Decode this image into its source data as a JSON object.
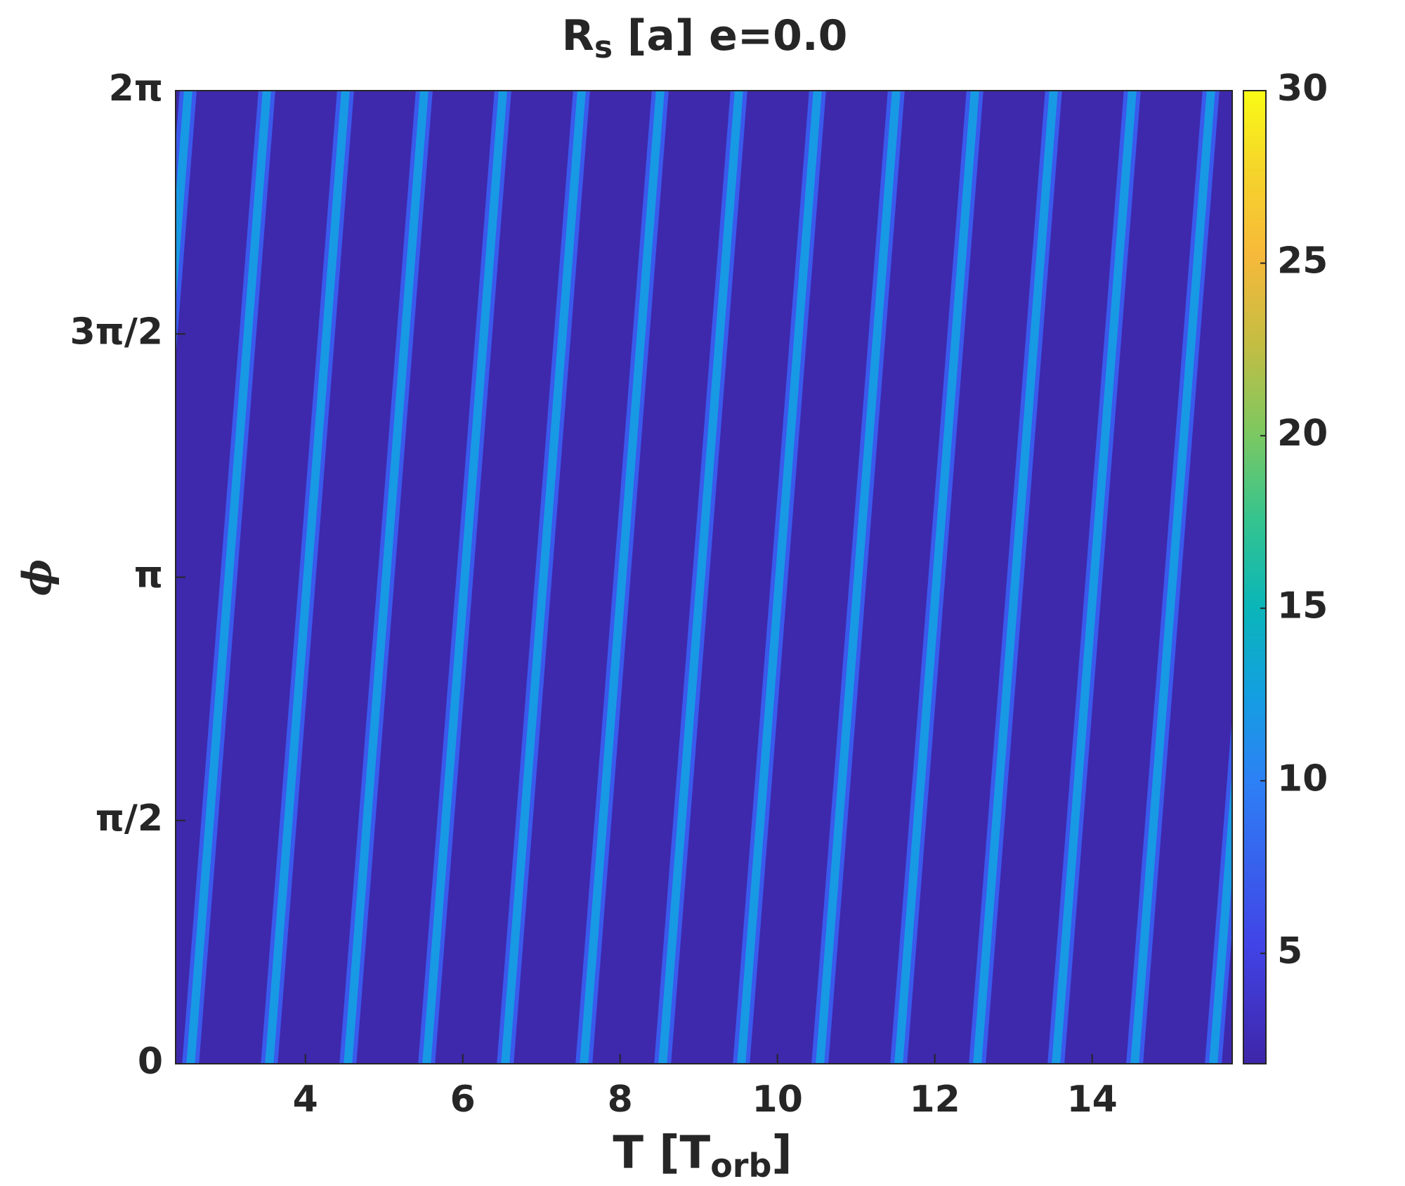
{
  "chart_data": {
    "type": "heatmap",
    "title": {
      "main": "R",
      "sub": "s",
      "rest": " [a] e=0.0"
    },
    "xlabel": {
      "main": "T [T",
      "sub": "orb",
      "rest": "]"
    },
    "ylabel": "ϕ",
    "xlim": [
      2.35,
      15.78
    ],
    "xticks": [
      4,
      6,
      8,
      10,
      12,
      14
    ],
    "ylim": [
      0,
      6.2832
    ],
    "yticks": [
      0,
      {
        "value": 1.5708,
        "label": "π/2"
      },
      {
        "value": 3.1416,
        "label": "π"
      },
      {
        "value": 4.7124,
        "label": "3π/2"
      },
      {
        "value": 6.2832,
        "label": "2π"
      }
    ],
    "clim": [
      1.8,
      30
    ],
    "cticks": [
      5,
      10,
      15,
      20,
      25,
      30
    ],
    "colormap": "parula",
    "colormap_stops": [
      [
        0,
        "#3e26a8"
      ],
      [
        0.12,
        "#4143e6"
      ],
      [
        0.29,
        "#2d80f5"
      ],
      [
        0.38,
        "#139fe0"
      ],
      [
        0.47,
        "#0ab6b8"
      ],
      [
        0.56,
        "#35c48e"
      ],
      [
        0.65,
        "#7ec860"
      ],
      [
        0.74,
        "#c4bd43"
      ],
      [
        0.83,
        "#f6b93a"
      ],
      [
        0.92,
        "#f5d52a"
      ],
      [
        1,
        "#f9fb15"
      ]
    ],
    "background_value": 2,
    "stripes": [
      {
        "x": [
          1.54,
          2.51
        ],
        "y": [
          0,
          6.2832
        ],
        "value": 12
      },
      {
        "x": [
          2.54,
          3.51
        ],
        "y": [
          0,
          6.2832
        ],
        "value": 12
      },
      {
        "x": [
          3.54,
          4.51
        ],
        "y": [
          0,
          6.2832
        ],
        "value": 12
      },
      {
        "x": [
          4.54,
          5.51
        ],
        "y": [
          0,
          6.2832
        ],
        "value": 12
      },
      {
        "x": [
          5.54,
          6.51
        ],
        "y": [
          0,
          6.2832
        ],
        "value": 12
      },
      {
        "x": [
          6.54,
          7.51
        ],
        "y": [
          0,
          6.2832
        ],
        "value": 12
      },
      {
        "x": [
          7.54,
          8.51
        ],
        "y": [
          0,
          6.2832
        ],
        "value": 12
      },
      {
        "x": [
          8.54,
          9.51
        ],
        "y": [
          0,
          6.2832
        ],
        "value": 12
      },
      {
        "x": [
          9.54,
          10.51
        ],
        "y": [
          0,
          6.2832
        ],
        "value": 12
      },
      {
        "x": [
          10.54,
          11.51
        ],
        "y": [
          0,
          6.2832
        ],
        "value": 12
      },
      {
        "x": [
          11.54,
          12.51
        ],
        "y": [
          0,
          6.2832
        ],
        "value": 12
      },
      {
        "x": [
          12.54,
          13.51
        ],
        "y": [
          0,
          6.2832
        ],
        "value": 12
      },
      {
        "x": [
          13.54,
          14.51
        ],
        "y": [
          0,
          6.2832
        ],
        "value": 12
      },
      {
        "x": [
          14.54,
          15.51
        ],
        "y": [
          0,
          6.2832
        ],
        "value": 12
      },
      {
        "x": [
          15.54,
          16.51
        ],
        "y": [
          0,
          6.2832
        ],
        "value": 12
      }
    ]
  }
}
